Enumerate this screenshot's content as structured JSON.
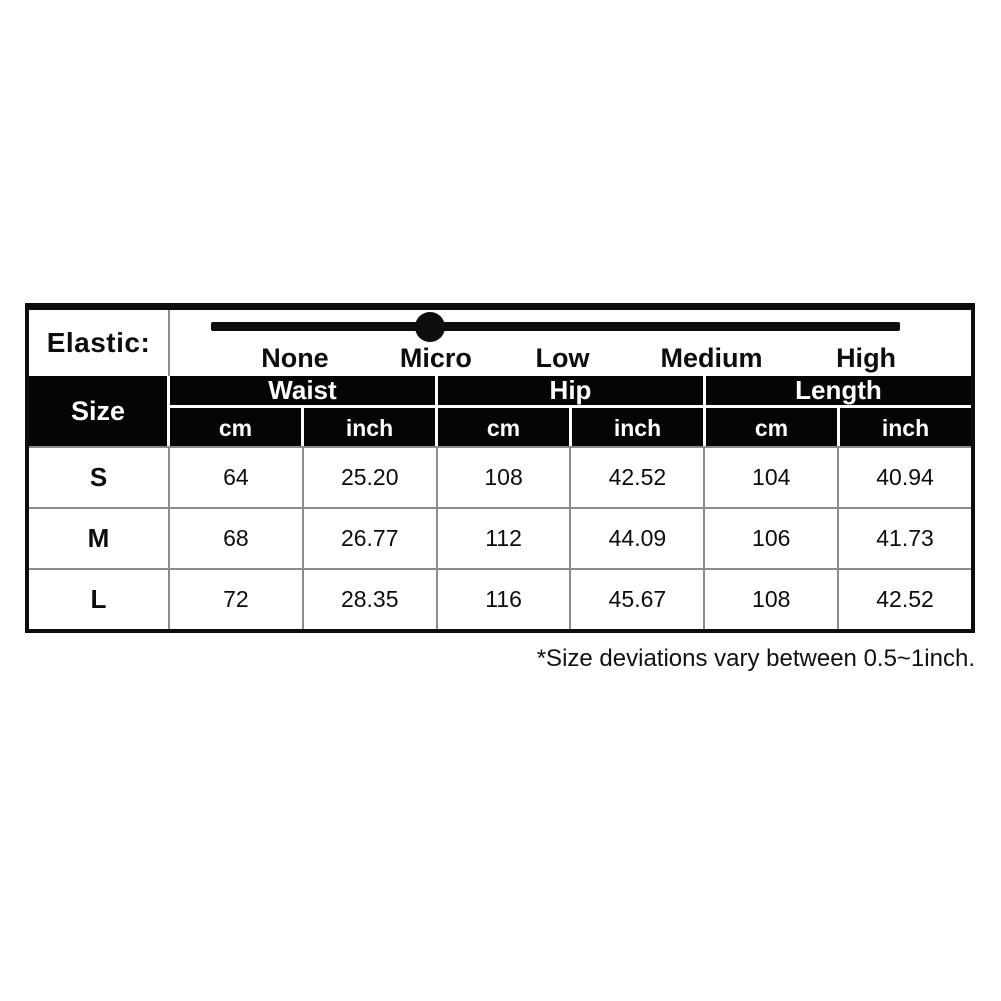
{
  "elastic": {
    "label": "Elastic:",
    "levels": [
      "None",
      "Micro",
      "Low",
      "Medium",
      "High"
    ],
    "selected_level": "Micro",
    "slider": {
      "dot_position_pct": 32.4,
      "bar_left_pct": 5.1,
      "bar_width_pct": 86
    }
  },
  "table": {
    "size_header": "Size",
    "groups": [
      {
        "label": "Waist"
      },
      {
        "label": "Hip"
      },
      {
        "label": "Length"
      }
    ],
    "unit_headers": [
      "cm",
      "inch"
    ],
    "rows": [
      {
        "size": "S",
        "waist_cm": "64",
        "waist_inch": "25.20",
        "hip_cm": "108",
        "hip_inch": "42.52",
        "length_cm": "104",
        "length_inch": "40.94"
      },
      {
        "size": "M",
        "waist_cm": "68",
        "waist_inch": "26.77",
        "hip_cm": "112",
        "hip_inch": "44.09",
        "length_cm": "106",
        "length_inch": "41.73"
      },
      {
        "size": "L",
        "waist_cm": "72",
        "waist_inch": "28.35",
        "hip_cm": "116",
        "hip_inch": "45.67",
        "length_cm": "108",
        "length_inch": "42.52"
      }
    ]
  },
  "footer_note": "*Size deviations vary between 0.5~1inch.",
  "colors": {
    "header_bg": "#050505",
    "header_text": "#ffffff",
    "cell_border": "#8c8c8c",
    "outer_border": "#0d0d0d",
    "slider": "#0d0d0d"
  }
}
